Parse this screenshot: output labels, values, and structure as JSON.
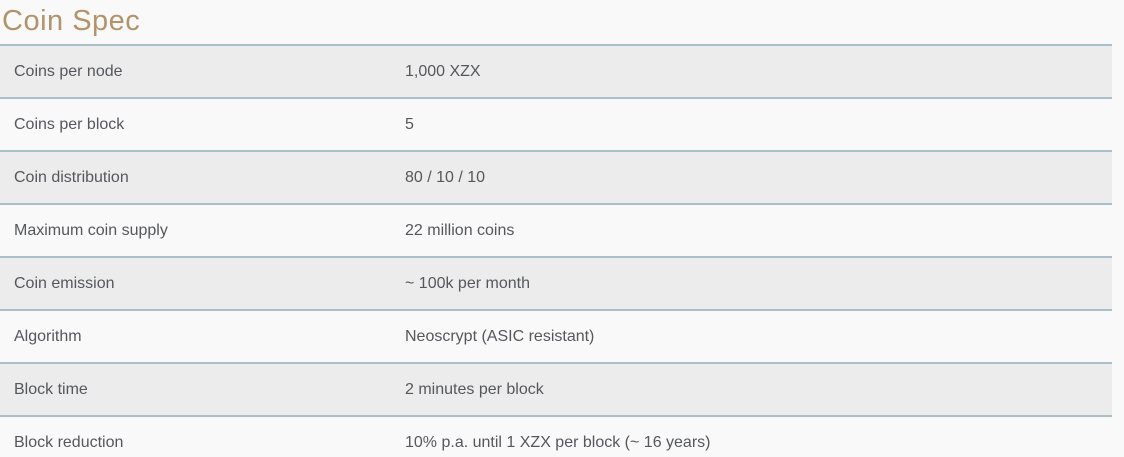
{
  "page": {
    "title": "Coin Spec"
  },
  "table": {
    "rows": [
      {
        "label": "Coins per node",
        "value": "1,000 XZX"
      },
      {
        "label": "Coins per block",
        "value": "5"
      },
      {
        "label": "Coin distribution",
        "value": "80 / 10 / 10"
      },
      {
        "label": "Maximum coin supply",
        "value": "22 million coins"
      },
      {
        "label": "Coin emission",
        "value": "~ 100k per month"
      },
      {
        "label": "Algorithm",
        "value": "Neoscrypt (ASIC resistant)"
      },
      {
        "label": "Block time",
        "value": "2 minutes per block"
      },
      {
        "label": "Block reduction",
        "value": "10% p.a. until 1 XZX per block (~ 16 years)"
      }
    ]
  },
  "colors": {
    "title_color": "#b2946a",
    "text_color": "#55575c",
    "border_color": "#a9c0c9",
    "row_bg": "#f9f9f9",
    "row_alt_bg": "#ececec",
    "page_bg": "#f9f9f9"
  }
}
